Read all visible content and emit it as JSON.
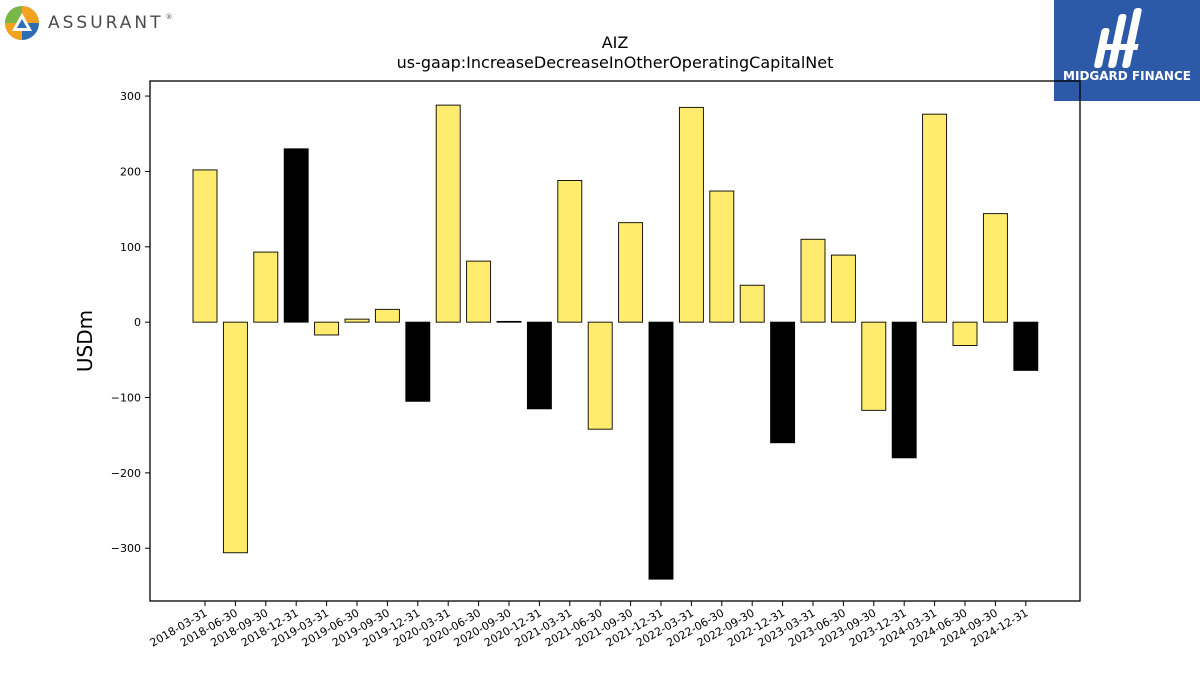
{
  "branding": {
    "left_logo_text": "ASSURANT",
    "left_logo_mark": "®",
    "right_logo_text": "MIDGARD FINANCE",
    "right_logo_bg": "#2c5aa8"
  },
  "colors": {
    "bar_fill": "#ffeb6e",
    "bar_fill_q4": "#000000",
    "bar_stroke": "#000000"
  },
  "chart_data": {
    "type": "bar",
    "title": "AIZ",
    "subtitle": "us-gaap:IncreaseDecreaseInOtherOperatingCapitalNet",
    "xlabel": "",
    "ylabel": "USDm",
    "ylim": [
      -370,
      320
    ],
    "yticks": [
      300,
      200,
      100,
      0,
      -100,
      -200,
      -300
    ],
    "ytick_labels": [
      "300",
      "200",
      "100",
      "0",
      "−100",
      "−200",
      "−300"
    ],
    "grid": false,
    "categories": [
      "2018-03-31",
      "2018-06-30",
      "2018-09-30",
      "2018-12-31",
      "2019-03-31",
      "2019-06-30",
      "2019-09-30",
      "2019-12-31",
      "2020-03-31",
      "2020-06-30",
      "2020-09-30",
      "2020-12-31",
      "2021-03-31",
      "2021-06-30",
      "2021-09-30",
      "2021-12-31",
      "2022-03-31",
      "2022-06-30",
      "2022-09-30",
      "2022-12-31",
      "2023-03-31",
      "2023-06-30",
      "2023-09-30",
      "2023-12-31",
      "2024-03-31",
      "2024-06-30",
      "2024-09-30",
      "2024-12-31"
    ],
    "values": [
      202,
      -306,
      93,
      230,
      -17,
      4,
      17,
      -105,
      288,
      81,
      1,
      -115,
      188,
      -142,
      132,
      -341,
      285,
      174,
      49,
      -160,
      110,
      89,
      -117,
      -180,
      276,
      -31,
      144,
      -64
    ]
  }
}
